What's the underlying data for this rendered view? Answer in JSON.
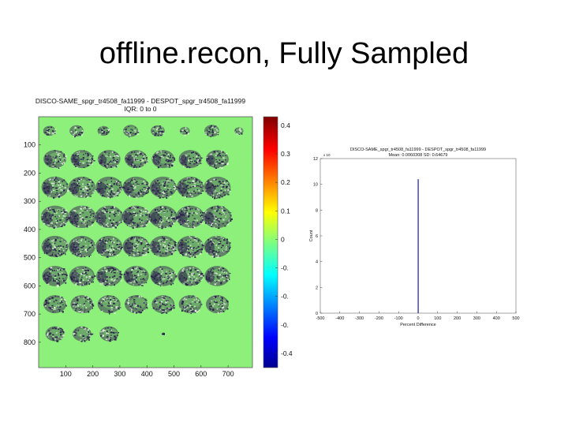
{
  "slide": {
    "title": "offline.recon, Fully Sampled"
  },
  "colors": {
    "map_background": "#8df07a",
    "brain_texture": "#2a1f4a",
    "hist_bar": "#1a1aa8"
  },
  "chart_data": [
    {
      "type": "heatmap",
      "title": "DISCO-SAME_spgr_tr4508_fa11999 - DESPOT_spgr_tr4508_fa11999",
      "subtitle": "IQR: 0 to 0",
      "xlabel": "",
      "ylabel": "",
      "xlim": [
        0,
        790
      ],
      "ylim": [
        890,
        0
      ],
      "x_ticks": [
        100,
        200,
        300,
        400,
        500,
        600,
        700
      ],
      "y_ticks": [
        100,
        200,
        300,
        400,
        500,
        600,
        700,
        800
      ],
      "colorbar": {
        "range": [
          -0.45,
          0.43
        ],
        "ticks": [
          "0.4",
          "0.3",
          "0.2",
          "0.1",
          "0",
          "-0.",
          "-0.",
          "-0.",
          "-0.4"
        ],
        "colormap": "jet"
      },
      "grid": false,
      "slices": {
        "rows": [
          {
            "cy": 50,
            "cols": [
              40,
              140,
              240,
              340,
              440,
              540,
              640,
              740
            ],
            "size": 0.55
          },
          {
            "cy": 150,
            "cols": [
              60,
              160,
              260,
              360,
              460,
              560,
              660
            ],
            "size": 0.85
          },
          {
            "cy": 250,
            "cols": [
              60,
              160,
              260,
              360,
              460,
              560,
              660
            ],
            "size": 1.0
          },
          {
            "cy": 355,
            "cols": [
              60,
              160,
              260,
              360,
              460,
              560,
              660
            ],
            "size": 1.05
          },
          {
            "cy": 460,
            "cols": [
              60,
              160,
              260,
              360,
              460,
              560,
              660
            ],
            "size": 1.0
          },
          {
            "cy": 565,
            "cols": [
              60,
              160,
              260,
              360,
              460,
              560,
              660
            ],
            "size": 0.95
          },
          {
            "cy": 665,
            "cols": [
              60,
              160,
              260,
              360,
              460,
              560,
              660
            ],
            "size": 0.85
          },
          {
            "cy": 770,
            "cols": [
              60,
              160,
              260,
              460
            ],
            "size": 0.7
          }
        ]
      }
    },
    {
      "type": "bar",
      "title": "DISCO-SAME_spgr_tr4508_fa11999 - DESPOT_spgr_tr4508_fa11999",
      "subtitle": "Mean: 0.0060308 SD: 0.64679",
      "xlabel": "Percent Difference",
      "ylabel": "Count",
      "y_scale_label": "x 10",
      "xlim": [
        -500,
        500
      ],
      "ylim": [
        0,
        12
      ],
      "x_ticks": [
        "-500",
        "-400",
        "-300",
        "-200",
        "-100",
        "0",
        "100",
        "200",
        "300",
        "400",
        "500"
      ],
      "y_ticks": [
        "0",
        "2",
        "4",
        "6",
        "8",
        "10",
        "12"
      ],
      "grid": false,
      "bars": [
        {
          "x": 0,
          "value": 10.4
        }
      ]
    }
  ]
}
